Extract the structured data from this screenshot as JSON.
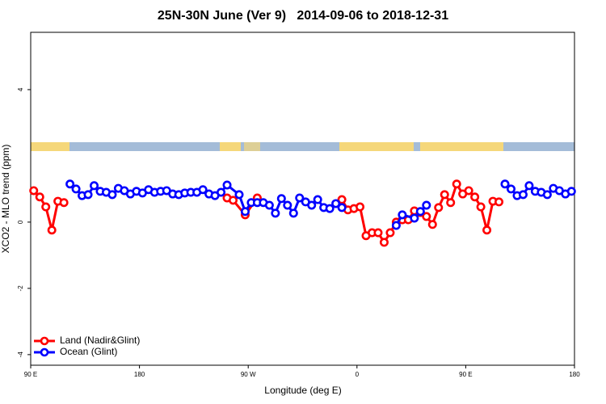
{
  "chart_data": {
    "type": "line",
    "title": "25N-30N June (Ver 9)   2014-09-06 to 2018-12-31",
    "x_label": "Longitude (deg E)",
    "y_label": "XCO2 - MLO trend (ppm)",
    "xlim": [
      90,
      540
    ],
    "xticks": [
      {
        "value": 90,
        "label": "90 E"
      },
      180,
      {
        "value": 270,
        "label": "90 W"
      },
      {
        "value": 360,
        "label": "0"
      },
      {
        "value": 450,
        "label": "90 E"
      },
      {
        "value": 540,
        "label": "180"
      }
    ],
    "ylim": [
      -4.32,
      5.73
    ],
    "yticks": [
      -4,
      -2,
      0,
      4
    ],
    "legend": "bottom-left",
    "series": [
      {
        "name": "Land (Nadir&Glint)",
        "color": "#ff0000",
        "x": [
          92.5,
          97.5,
          102.5,
          107.5,
          112.5,
          117.5,
          null,
          252.5,
          257.5,
          267.5,
          277.5,
          null,
          347.5,
          352.5,
          357.5,
          362.5,
          367.5,
          372.5,
          377.5,
          382.5,
          387.5,
          392.5,
          397.5,
          402.5,
          407.5,
          412.5,
          417.5,
          422.5,
          427.5,
          432.5,
          437.5,
          442.5,
          447.5,
          452.5,
          457.5,
          462.5,
          467.5,
          472.5,
          477.5
        ],
        "values": [
          0.95,
          0.76,
          0.46,
          -0.24,
          0.63,
          0.59,
          null,
          0.73,
          0.66,
          0.22,
          0.73,
          null,
          0.68,
          0.37,
          0.41,
          0.46,
          -0.41,
          -0.32,
          -0.32,
          -0.61,
          -0.32,
          0.0,
          0.07,
          0.07,
          0.34,
          0.29,
          0.17,
          -0.07,
          0.44,
          0.83,
          0.59,
          1.15,
          0.85,
          0.95,
          0.76,
          0.46,
          -0.24,
          0.63,
          0.61
        ]
      },
      {
        "name": "Ocean (Glint)",
        "color": "#0000ff",
        "x": [
          122.5,
          127.5,
          132.5,
          137.5,
          142.5,
          147.5,
          152.5,
          157.5,
          162.5,
          167.5,
          172.5,
          177.5,
          182.5,
          187.5,
          192.5,
          197.5,
          202.5,
          207.5,
          212.5,
          217.5,
          222.5,
          227.5,
          232.5,
          237.5,
          242.5,
          247.5,
          252.5,
          262.5,
          267.5,
          272.5,
          277.5,
          282.5,
          287.5,
          292.5,
          297.5,
          302.5,
          307.5,
          312.5,
          317.5,
          322.5,
          327.5,
          332.5,
          337.5,
          342.5,
          347.5,
          null,
          392.5,
          397.5,
          407.5,
          412.5,
          417.5,
          null,
          482.5,
          487.5,
          492.5,
          497.5,
          502.5,
          507.5,
          512.5,
          517.5,
          522.5,
          527.5,
          532.5,
          537.5
        ],
        "values": [
          1.15,
          1.0,
          0.8,
          0.83,
          1.1,
          0.93,
          0.9,
          0.83,
          1.02,
          0.95,
          0.85,
          0.93,
          0.88,
          0.98,
          0.9,
          0.93,
          0.95,
          0.85,
          0.83,
          0.88,
          0.9,
          0.9,
          0.98,
          0.85,
          0.8,
          0.9,
          1.12,
          0.83,
          0.32,
          0.59,
          0.59,
          0.59,
          0.51,
          0.27,
          0.71,
          0.51,
          0.27,
          0.73,
          0.61,
          0.51,
          0.68,
          0.44,
          0.41,
          0.56,
          0.44,
          null,
          -0.1,
          0.22,
          0.12,
          0.32,
          0.51,
          null,
          1.15,
          1.0,
          0.8,
          0.83,
          1.1,
          0.93,
          0.9,
          0.83,
          1.02,
          0.95,
          0.85,
          0.93
        ]
      }
    ]
  }
}
